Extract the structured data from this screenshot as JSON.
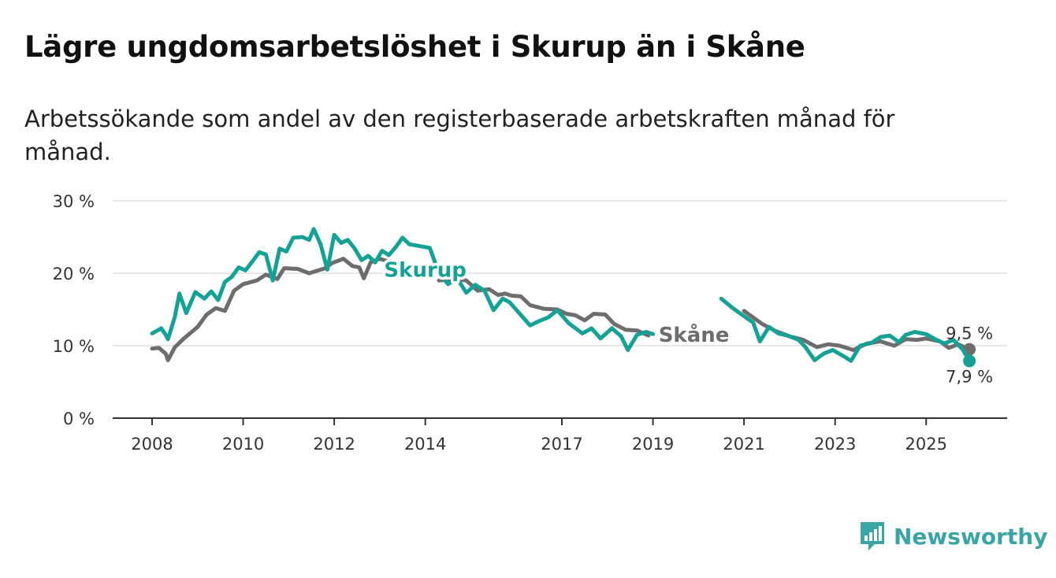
{
  "title": "Lägre ungdomsarbetslöshet i Skurup än i Skåne",
  "subtitle": "Arbetssökande som andel av den registerbaserade arbetskraften månad för månad.",
  "brand": {
    "name": "Newsworthy",
    "color": "#3aa5a2"
  },
  "chart_data": {
    "type": "line",
    "title": "Lägre ungdomsarbetslöshet i Skurup än i Skåne",
    "xlabel": "",
    "ylabel": "",
    "xlim": [
      2008,
      2026
    ],
    "ylim": [
      0,
      30
    ],
    "y_ticks": [
      0,
      10,
      20,
      30
    ],
    "y_tick_labels": [
      "0 %",
      "10 %",
      "20 %",
      "30 %"
    ],
    "x_ticks": [
      2008,
      2010,
      2012,
      2014,
      2017,
      2019,
      2021,
      2023,
      2025
    ],
    "x_tick_labels": [
      "2008",
      "2010",
      "2012",
      "2014",
      "2017",
      "2019",
      "2021",
      "2023",
      "2025"
    ],
    "grid": true,
    "series": [
      {
        "name": "Skåne",
        "color": "#6f6c6f",
        "end_label": "9,5 %",
        "points": [
          [
            2008.0,
            9.6
          ],
          [
            2008.15,
            9.7
          ],
          [
            2008.3,
            8.9
          ],
          [
            2008.35,
            8.0
          ],
          [
            2008.5,
            9.8
          ],
          [
            2008.7,
            11.0
          ],
          [
            2009.0,
            12.6
          ],
          [
            2009.2,
            14.3
          ],
          [
            2009.4,
            15.2
          ],
          [
            2009.6,
            14.8
          ],
          [
            2009.8,
            17.6
          ],
          [
            2010.0,
            18.5
          ],
          [
            2010.3,
            19.0
          ],
          [
            2010.5,
            19.8
          ],
          [
            2010.75,
            19.2
          ],
          [
            2010.9,
            20.7
          ],
          [
            2011.2,
            20.6
          ],
          [
            2011.45,
            20.0
          ],
          [
            2011.6,
            20.3
          ],
          [
            2011.8,
            20.7
          ],
          [
            2011.95,
            21.4
          ],
          [
            2012.2,
            22.0
          ],
          [
            2012.4,
            21.0
          ],
          [
            2012.55,
            20.8
          ],
          [
            2012.65,
            19.3
          ],
          [
            2012.8,
            21.5
          ],
          [
            2013.0,
            22.0
          ],
          [
            2013.3,
            21.4
          ],
          [
            2014.3,
            19.0
          ],
          [
            2014.6,
            19.2
          ],
          [
            2014.9,
            19.0
          ],
          [
            2015.15,
            17.6
          ],
          [
            2015.4,
            17.8
          ],
          [
            2015.6,
            17.0
          ],
          [
            2015.75,
            17.2
          ],
          [
            2015.9,
            16.9
          ],
          [
            2016.1,
            16.8
          ],
          [
            2016.3,
            15.6
          ],
          [
            2016.6,
            15.1
          ],
          [
            2016.9,
            15.0
          ],
          [
            2017.1,
            14.4
          ],
          [
            2017.3,
            14.2
          ],
          [
            2017.5,
            13.5
          ],
          [
            2017.7,
            14.4
          ],
          [
            2017.95,
            14.3
          ],
          [
            2018.15,
            13.0
          ],
          [
            2018.4,
            12.2
          ],
          [
            2018.65,
            12.1
          ],
          [
            2018.9,
            11.4
          ],
          [
            2021.0,
            14.8
          ],
          [
            2021.4,
            13.0
          ],
          [
            2021.7,
            12.0
          ],
          [
            2022.0,
            11.3
          ],
          [
            2022.3,
            10.8
          ],
          [
            2022.6,
            9.8
          ],
          [
            2022.85,
            10.2
          ],
          [
            2023.1,
            10.0
          ],
          [
            2023.4,
            9.4
          ],
          [
            2023.7,
            10.3
          ],
          [
            2024.0,
            10.6
          ],
          [
            2024.3,
            10.0
          ],
          [
            2024.55,
            10.9
          ],
          [
            2024.8,
            10.8
          ],
          [
            2025.0,
            11.0
          ],
          [
            2025.3,
            10.6
          ],
          [
            2025.5,
            9.7
          ],
          [
            2025.7,
            10.2
          ],
          [
            2025.95,
            9.5
          ]
        ]
      },
      {
        "name": "Skurup",
        "color": "#15a295",
        "end_label": "7,9 %",
        "points": [
          [
            2008.0,
            11.7
          ],
          [
            2008.2,
            12.4
          ],
          [
            2008.3,
            11.5
          ],
          [
            2008.35,
            10.9
          ],
          [
            2008.5,
            14.0
          ],
          [
            2008.6,
            17.2
          ],
          [
            2008.75,
            14.5
          ],
          [
            2008.95,
            17.4
          ],
          [
            2009.15,
            16.5
          ],
          [
            2009.3,
            17.5
          ],
          [
            2009.45,
            16.3
          ],
          [
            2009.6,
            18.8
          ],
          [
            2009.75,
            19.5
          ],
          [
            2009.9,
            20.8
          ],
          [
            2010.05,
            20.4
          ],
          [
            2010.2,
            21.6
          ],
          [
            2010.35,
            22.9
          ],
          [
            2010.5,
            22.6
          ],
          [
            2010.65,
            19.0
          ],
          [
            2010.8,
            23.4
          ],
          [
            2010.95,
            23.0
          ],
          [
            2011.1,
            24.9
          ],
          [
            2011.3,
            25.0
          ],
          [
            2011.45,
            24.6
          ],
          [
            2011.55,
            26.1
          ],
          [
            2011.7,
            24.0
          ],
          [
            2011.85,
            20.5
          ],
          [
            2012.0,
            25.3
          ],
          [
            2012.15,
            24.2
          ],
          [
            2012.3,
            24.6
          ],
          [
            2012.45,
            23.4
          ],
          [
            2012.6,
            21.8
          ],
          [
            2012.75,
            22.4
          ],
          [
            2012.9,
            21.5
          ],
          [
            2013.05,
            23.1
          ],
          [
            2013.2,
            22.5
          ],
          [
            2013.35,
            23.6
          ],
          [
            2013.5,
            24.9
          ],
          [
            2013.65,
            24.0
          ],
          [
            2014.1,
            23.5
          ],
          [
            2014.3,
            20.0
          ],
          [
            2014.5,
            18.5
          ],
          [
            2014.7,
            19.3
          ],
          [
            2014.9,
            17.3
          ],
          [
            2015.1,
            18.4
          ],
          [
            2015.3,
            17.6
          ],
          [
            2015.5,
            14.9
          ],
          [
            2015.7,
            16.5
          ],
          [
            2015.85,
            16.0
          ],
          [
            2016.05,
            14.6
          ],
          [
            2016.3,
            12.8
          ],
          [
            2016.5,
            13.4
          ],
          [
            2016.7,
            13.9
          ],
          [
            2016.9,
            14.9
          ],
          [
            2017.15,
            13.1
          ],
          [
            2017.45,
            11.7
          ],
          [
            2017.65,
            12.4
          ],
          [
            2017.85,
            11.0
          ],
          [
            2018.1,
            12.4
          ],
          [
            2018.3,
            11.3
          ],
          [
            2018.45,
            9.4
          ],
          [
            2018.65,
            11.5
          ],
          [
            2018.85,
            11.9
          ],
          [
            2019.0,
            11.6
          ],
          [
            2020.5,
            16.5
          ],
          [
            2020.75,
            15.2
          ],
          [
            2020.95,
            14.3
          ],
          [
            2021.2,
            13.2
          ],
          [
            2021.35,
            10.6
          ],
          [
            2021.55,
            12.6
          ],
          [
            2021.75,
            11.7
          ],
          [
            2021.95,
            11.4
          ],
          [
            2022.2,
            10.8
          ],
          [
            2022.35,
            9.8
          ],
          [
            2022.55,
            8.0
          ],
          [
            2022.75,
            8.9
          ],
          [
            2022.95,
            9.4
          ],
          [
            2023.2,
            8.5
          ],
          [
            2023.35,
            7.9
          ],
          [
            2023.55,
            10.0
          ],
          [
            2023.8,
            10.4
          ],
          [
            2024.0,
            11.2
          ],
          [
            2024.2,
            11.4
          ],
          [
            2024.4,
            10.5
          ],
          [
            2024.55,
            11.5
          ],
          [
            2024.75,
            11.9
          ],
          [
            2025.0,
            11.6
          ],
          [
            2025.2,
            10.9
          ],
          [
            2025.4,
            10.3
          ],
          [
            2025.6,
            10.8
          ],
          [
            2025.8,
            9.5
          ],
          [
            2025.95,
            7.9
          ]
        ]
      }
    ]
  }
}
